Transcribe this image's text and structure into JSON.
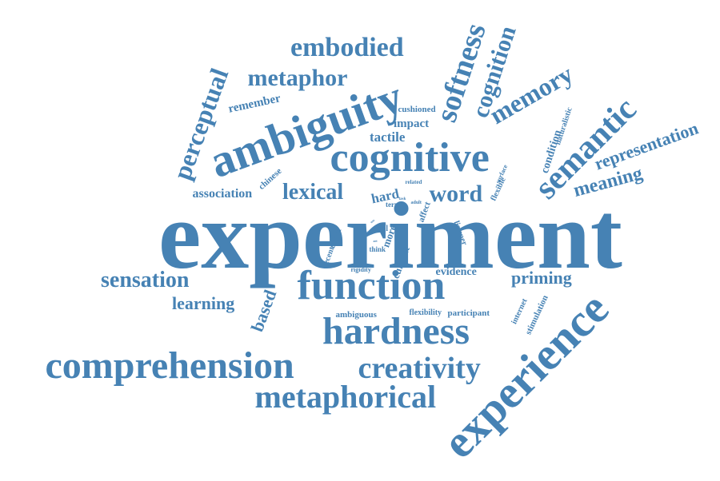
{
  "cloud": {
    "color": "#4682b4",
    "words": [
      "experiment",
      "function",
      "hardness",
      "experience",
      "comprehension",
      "cognitive",
      "ambiguity",
      "metaphorical",
      "creativity",
      "semantic",
      "softness",
      "cognition",
      "embodied",
      "metaphor",
      "perceptual",
      "memory",
      "sensation",
      "lexical",
      "word",
      "priming",
      "learning",
      "representation",
      "meaning",
      "based",
      "association",
      "remember",
      "tactile",
      "impact",
      "cushioned",
      "condition",
      "naturalistic",
      "hard",
      "evidence",
      "ambiguous",
      "flexibility",
      "participant",
      "internet",
      "stimulation",
      "chinese",
      "more",
      "current",
      "affect",
      "scale",
      "listener",
      "surface",
      "flexible",
      "related",
      "effect",
      "recent",
      "think",
      "rigidity",
      "stool",
      "term",
      "adult",
      "task",
      "your",
      "use",
      "art"
    ]
  }
}
